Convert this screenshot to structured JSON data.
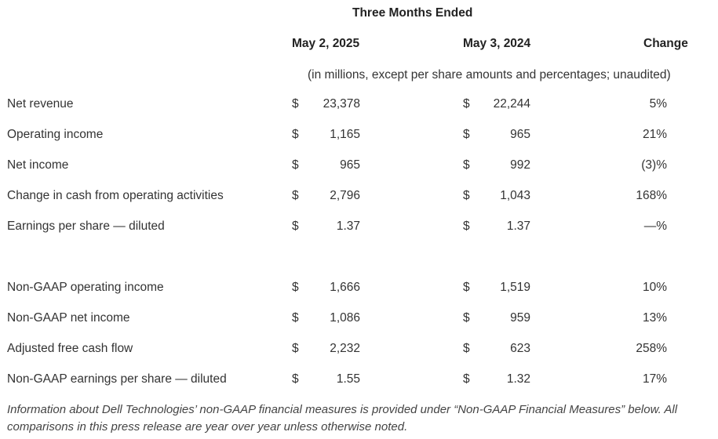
{
  "header": {
    "period": "Three Months Ended",
    "col1": "May 2, 2025",
    "col2": "May 3, 2024",
    "col3": "Change",
    "units": "(in millions, except per share amounts and percentages; unaudited)"
  },
  "rows": [
    {
      "label": "Net revenue",
      "cur1": "$",
      "val1": "23,378",
      "cur2": "$",
      "val2": "22,244",
      "change": "5%"
    },
    {
      "label": "Operating income",
      "cur1": "$",
      "val1": "1,165",
      "cur2": "$",
      "val2": "965",
      "change": "21%"
    },
    {
      "label": "Net income",
      "cur1": "$",
      "val1": "965",
      "cur2": "$",
      "val2": "992",
      "change": "(3)%"
    },
    {
      "label": "Change in cash from operating activities",
      "cur1": "$",
      "val1": "2,796",
      "cur2": "$",
      "val2": "1,043",
      "change": "168%"
    },
    {
      "label": "Earnings per share — diluted",
      "cur1": "$",
      "val1": "1.37",
      "cur2": "$",
      "val2": "1.37",
      "change": "—%"
    },
    {
      "label": "Non-GAAP operating income",
      "cur1": "$",
      "val1": "1,666",
      "cur2": "$",
      "val2": "1,519",
      "change": "10%"
    },
    {
      "label": "Non-GAAP net income",
      "cur1": "$",
      "val1": "1,086",
      "cur2": "$",
      "val2": "959",
      "change": "13%"
    },
    {
      "label": "Adjusted free cash flow",
      "cur1": "$",
      "val1": "2,232",
      "cur2": "$",
      "val2": "623",
      "change": "258%"
    },
    {
      "label": "Non-GAAP earnings per share — diluted",
      "cur1": "$",
      "val1": "1.55",
      "cur2": "$",
      "val2": "1.32",
      "change": "17%"
    }
  ],
  "footnote": "Information about Dell Technologies’ non-GAAP financial measures is provided under “Non-GAAP Financial Measures” below. All comparisons in this press release are year over year unless otherwise noted."
}
